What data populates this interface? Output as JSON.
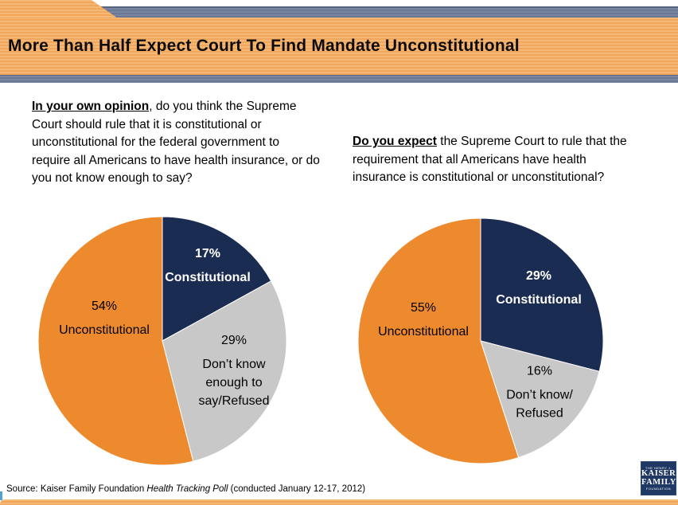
{
  "header": {
    "title": "More Than Half Expect Court To Find Mandate Unconstitutional"
  },
  "questions": {
    "left_lead": "In your own opinion",
    "left_rest": ", do you think the Supreme Court should rule that it is constitutional or unconstitutional for the federal government to require all Americans to have health insurance, or do you not know enough to say?",
    "right_lead": "Do you expect",
    "right_rest": " the Supreme Court to rule that the requirement that all Americans have health insurance is constitutional or unconstitutional?"
  },
  "chart_data": [
    {
      "type": "pie",
      "title": "In your own opinion, do you think the Supreme Court should rule that it is constitutional or unconstitutional for the federal government to require all Americans to have health insurance, or do you not know enough to say?",
      "start_angle": "12-o-clock",
      "direction": "clockwise",
      "legend_position": "labels-inside-slices",
      "slices": [
        {
          "label": "Constitutional",
          "value": 17,
          "color": "#1A2C52",
          "label_color": "#FFFFFF"
        },
        {
          "label": "Don’t know\nenough to\nsay/Refused",
          "value": 29,
          "color": "#C8C8C9",
          "label_color": "#000000"
        },
        {
          "label": "Unconstitutional",
          "value": 54,
          "color": "#EE8A2E",
          "label_color": "#000000"
        }
      ]
    },
    {
      "type": "pie",
      "title": "Do you expect the Supreme Court to rule that the requirement that all Americans have health insurance is constitutional or unconstitutional?",
      "start_angle": "12-o-clock",
      "direction": "clockwise",
      "legend_position": "labels-inside-slices",
      "slices": [
        {
          "label": "Constitutional",
          "value": 29,
          "color": "#1A2C52",
          "label_color": "#FFFFFF"
        },
        {
          "label": "Don’t know/\nRefused",
          "value": 16,
          "color": "#C8C8C9",
          "label_color": "#000000"
        },
        {
          "label": "Unconstitutional",
          "value": 55,
          "color": "#EE8A2E",
          "label_color": "#000000"
        }
      ]
    }
  ],
  "footer": {
    "source_prefix": "Source: Kaiser Family Foundation ",
    "source_italic": "Health Tracking Poll",
    "source_suffix": " (conducted January 12-17, 2012)",
    "logo_top": "THE HENRY J.",
    "logo_kaiser": "KAISER",
    "logo_family": "FAMILY",
    "logo_bottom": "FOUNDATION"
  },
  "colors": {
    "header_orange": "#F3AF68",
    "bar_gray": "#75829E",
    "pie_navy": "#1A2C52",
    "pie_orange": "#EE8A2E",
    "pie_gray": "#C8C8C9",
    "footer_bar_orange": "#F3AF68",
    "logo_navy": "#1F3864",
    "accent_blue": "#4FA0D8"
  }
}
